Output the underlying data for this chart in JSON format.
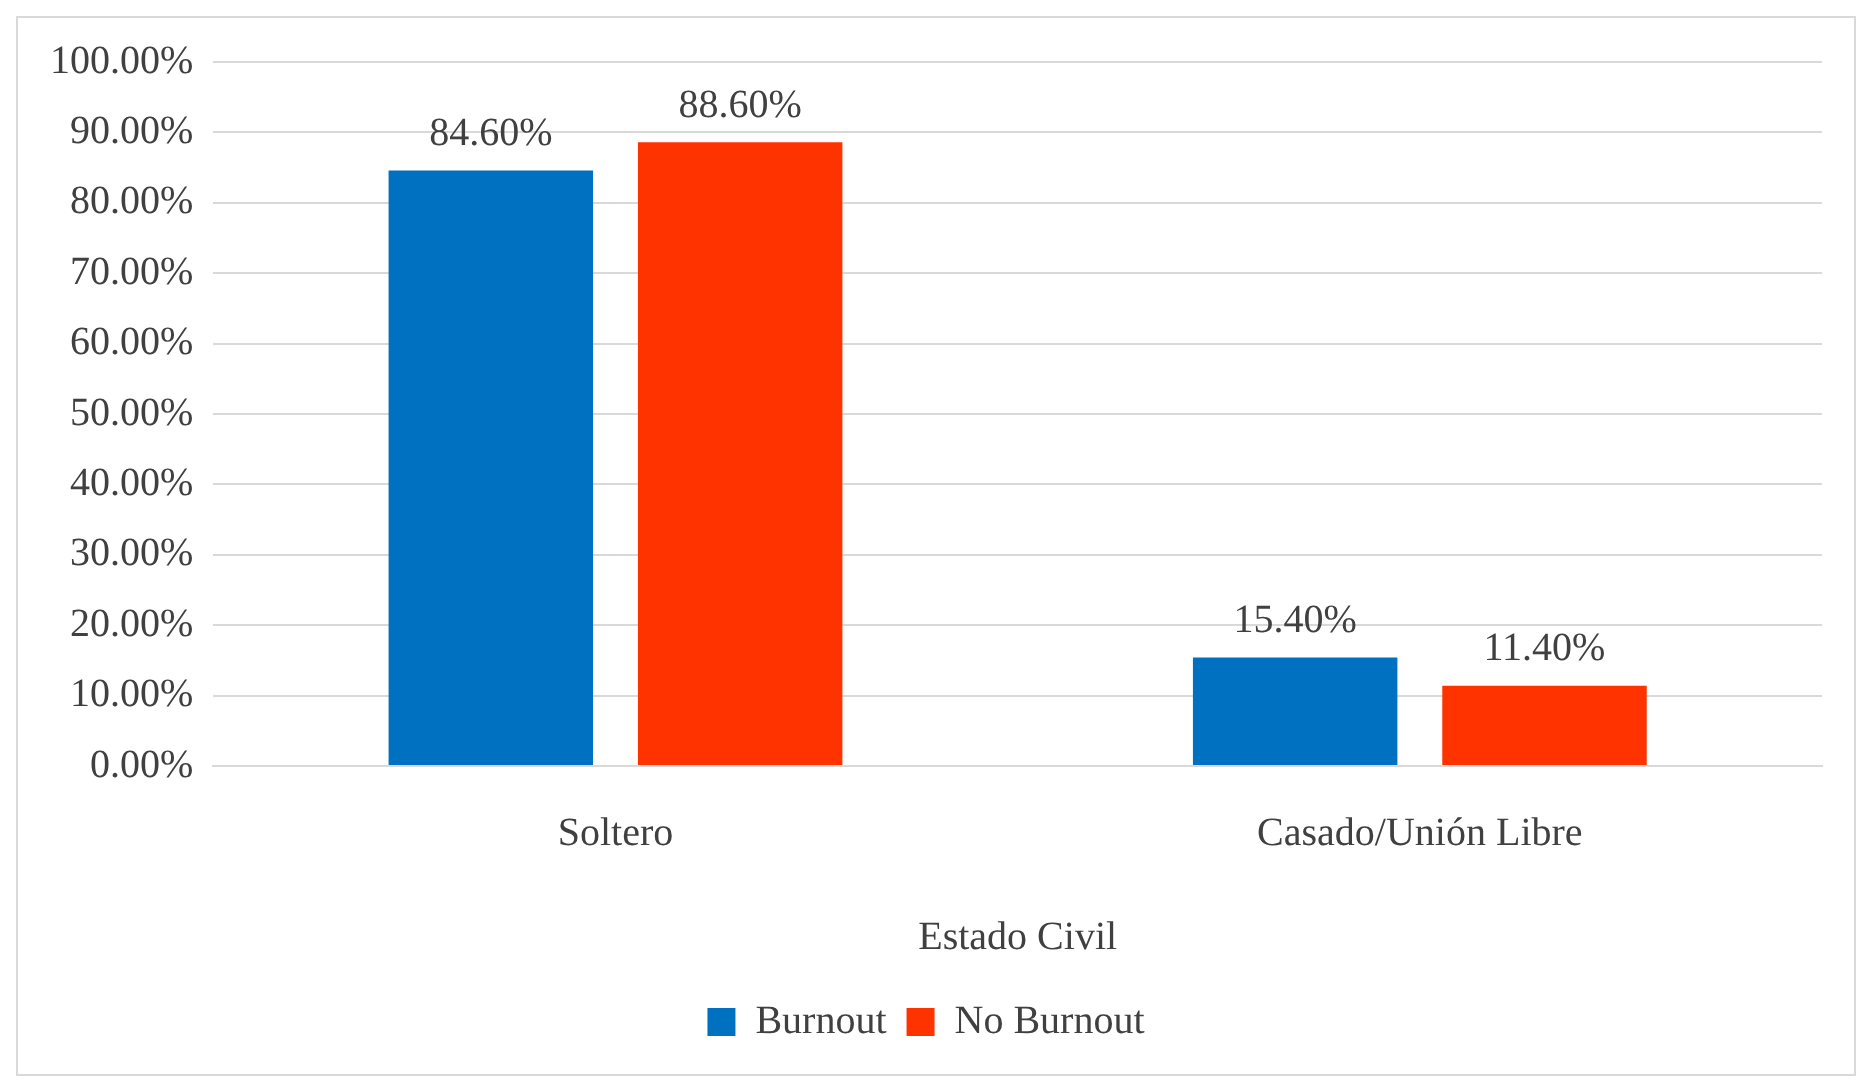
{
  "chart_data": {
    "type": "bar",
    "xlabel": "Estado Civil",
    "categories": [
      "Soltero",
      "Casado/Unión Libre"
    ],
    "series": [
      {
        "name": "Burnout",
        "color": "#0070c0",
        "values": [
          84.6,
          15.4
        ],
        "value_labels": [
          "84.60%",
          "15.40%"
        ]
      },
      {
        "name": "No Burnout",
        "color": "#ff3300",
        "values": [
          88.6,
          11.4
        ],
        "value_labels": [
          "88.60%",
          "11.40%"
        ]
      }
    ],
    "ylim": [
      0,
      100
    ],
    "yticks": [
      {
        "value": 0,
        "label": "0.00%"
      },
      {
        "value": 10,
        "label": "10.00%"
      },
      {
        "value": 20,
        "label": "20.00%"
      },
      {
        "value": 30,
        "label": "30.00%"
      },
      {
        "value": 40,
        "label": "40.00%"
      },
      {
        "value": 50,
        "label": "50.00%"
      },
      {
        "value": 60,
        "label": "60.00%"
      },
      {
        "value": 70,
        "label": "70.00%"
      },
      {
        "value": 80,
        "label": "80.00%"
      },
      {
        "value": 90,
        "label": "90.00%"
      },
      {
        "value": 100,
        "label": "100.00%"
      }
    ],
    "grid": "y",
    "legend": "bottom"
  }
}
